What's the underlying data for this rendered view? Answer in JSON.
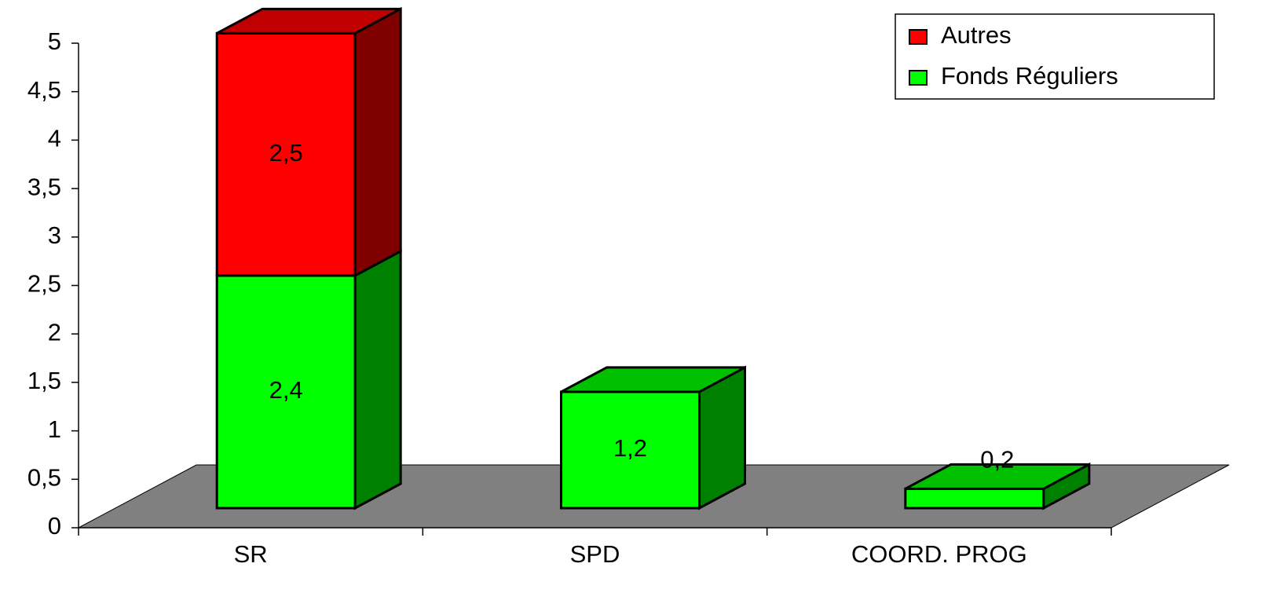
{
  "chart_data": {
    "type": "bar3d_stacked",
    "categories": [
      "SR",
      "SPD",
      "COORD. PROG"
    ],
    "series": [
      {
        "name": "Fonds Réguliers",
        "color": "#00ff00",
        "side_color": "#008000",
        "top_color": "#00c000",
        "values": [
          2.4,
          1.2,
          0.2
        ],
        "value_labels": [
          "2,4",
          "1,2",
          "0,2"
        ]
      },
      {
        "name": "Autres",
        "color": "#ff0000",
        "side_color": "#800000",
        "top_color": "#c00000",
        "values": [
          2.5,
          null,
          null
        ],
        "value_labels": [
          "2,5",
          null,
          null
        ]
      }
    ],
    "ylim": [
      0,
      5
    ],
    "yticks": [
      0,
      {
        "value": 0.5,
        "label": "0,5"
      },
      1,
      {
        "value": 1.5,
        "label": "1,5"
      },
      2,
      {
        "value": 2.5,
        "label": "2,5"
      },
      3,
      {
        "value": 3.5,
        "label": "3,5"
      },
      4,
      {
        "value": 4.5,
        "label": "4,5"
      },
      5
    ],
    "floor_color": "#808080",
    "legend": "top-right"
  }
}
